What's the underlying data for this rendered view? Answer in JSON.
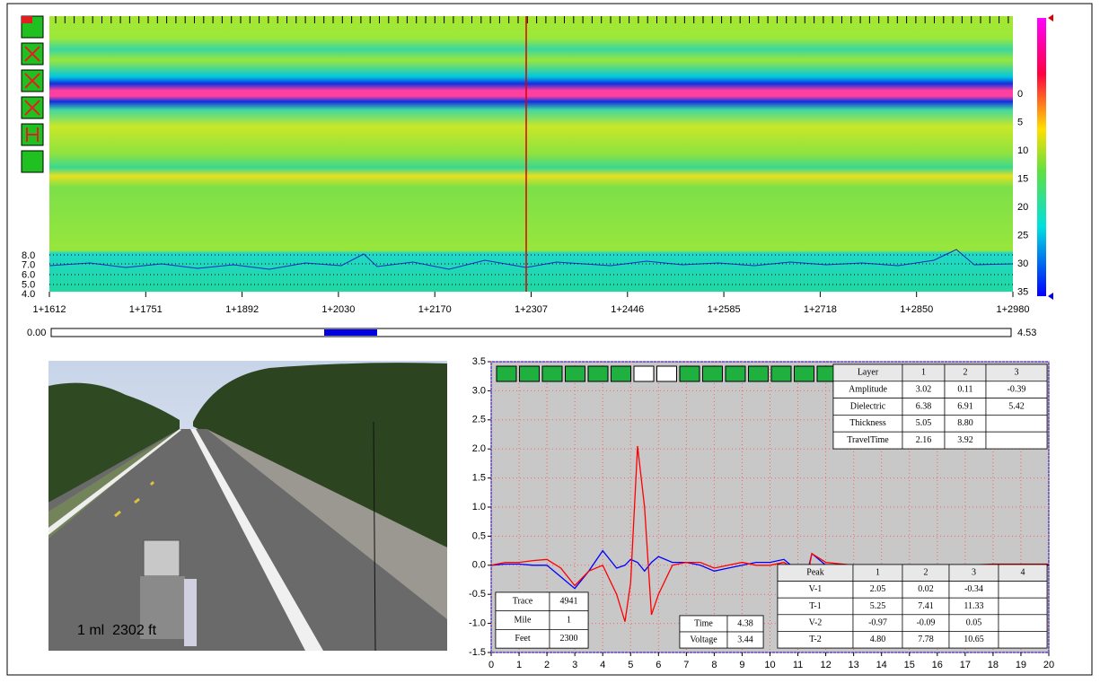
{
  "radargram": {
    "left_labels": [
      "8.0",
      "7.0",
      "6.0",
      "5.0",
      "4.0"
    ],
    "right_labels": [
      "0",
      "5",
      "10",
      "15",
      "20",
      "25",
      "30",
      "35"
    ],
    "x_labels": [
      "1+1612",
      "1+1751",
      "1+1892",
      "1+2030",
      "1+2170",
      "1+2307",
      "1+2446",
      "1+2585",
      "1+2718",
      "1+2850",
      "1+2980"
    ],
    "slider_start": "0.00",
    "slider_end": "4.53"
  },
  "photo": {
    "caption": "1 ml  2302 ft"
  },
  "info": {
    "rows": [
      [
        "Trace",
        "4941"
      ],
      [
        "Mile",
        "1"
      ],
      [
        "Feet",
        "2300"
      ]
    ]
  },
  "readout": {
    "rows": [
      [
        "Time",
        "4.38"
      ],
      [
        "Voltage",
        "3.44"
      ]
    ]
  },
  "layer_table": {
    "header": [
      "Layer",
      "1",
      "2",
      "3"
    ],
    "rows": [
      [
        "Amplitude",
        "3.02",
        "0.11",
        "-0.39"
      ],
      [
        "Dielectric",
        "6.38",
        "6.91",
        "5.42"
      ],
      [
        "Thickness",
        "5.05",
        "8.80"
      ],
      [
        "TravelTime",
        "2.16",
        "3.92"
      ]
    ]
  },
  "peak_table": {
    "header": [
      "Peak",
      "1",
      "2",
      "3",
      "4"
    ],
    "rows": [
      [
        "V-1",
        "2.05",
        "0.02",
        "-0.34"
      ],
      [
        "T-1",
        "5.25",
        "7.41",
        "11.33"
      ],
      [
        "V-2",
        "-0.97",
        "-0.09",
        "0.05"
      ],
      [
        "T-2",
        "4.80",
        "7.78",
        "10.65"
      ]
    ]
  },
  "chart_data": {
    "type": "line",
    "x": [
      0,
      0.5,
      1,
      1.5,
      2,
      2.5,
      3,
      3.5,
      4,
      4.5,
      4.8,
      5,
      5.25,
      5.5,
      5.75,
      6,
      6.5,
      7,
      7.5,
      8,
      8.5,
      9,
      9.5,
      10,
      10.5,
      11,
      11.3,
      11.5,
      12,
      13,
      14,
      15,
      16,
      17,
      18,
      19,
      20
    ],
    "series": [
      {
        "color": "#ff0000",
        "values": [
          0,
          0.05,
          0.05,
          0.08,
          0.1,
          -0.05,
          -0.35,
          -0.1,
          0,
          -0.5,
          -0.97,
          -0.3,
          2.05,
          1.0,
          -0.85,
          -0.5,
          0,
          0.05,
          0.05,
          -0.05,
          0,
          0.05,
          0,
          0,
          0.05,
          -0.1,
          -0.3,
          0.2,
          0.05,
          0,
          -0.05,
          0,
          -0.05,
          0,
          0.02,
          0.02,
          0.02
        ]
      },
      {
        "color": "#0000ff",
        "values": [
          0,
          0.02,
          0.02,
          0,
          0,
          -0.2,
          -0.4,
          -0.1,
          0.25,
          -0.05,
          0,
          0.1,
          0.05,
          -0.1,
          0.05,
          0.15,
          0.05,
          0.05,
          0,
          -0.1,
          -0.05,
          0,
          0.05,
          0.05,
          0.1,
          -0.1,
          -0.2,
          0.2,
          0,
          -0.05,
          -0.05,
          -0.05,
          -0.1,
          -0.05,
          0,
          0,
          0
        ]
      }
    ],
    "xlim": [
      0,
      20
    ],
    "ylim": [
      -1.5,
      3.5
    ],
    "xticks": [
      0,
      1,
      2,
      3,
      4,
      5,
      6,
      7,
      8,
      9,
      10,
      11,
      12,
      13,
      14,
      15,
      16,
      17,
      18,
      19,
      20
    ],
    "yticks": [
      -1.5,
      {
        "value": -1,
        "label": "-1.0"
      },
      -0.5,
      {
        "value": 0,
        "label": "0.0"
      },
      0.5,
      {
        "value": 1,
        "label": "1.0"
      },
      1.5,
      {
        "value": 2,
        "label": "2.0"
      },
      2.5,
      {
        "value": 3,
        "label": "3.0"
      },
      3.5
    ],
    "grid": true
  }
}
